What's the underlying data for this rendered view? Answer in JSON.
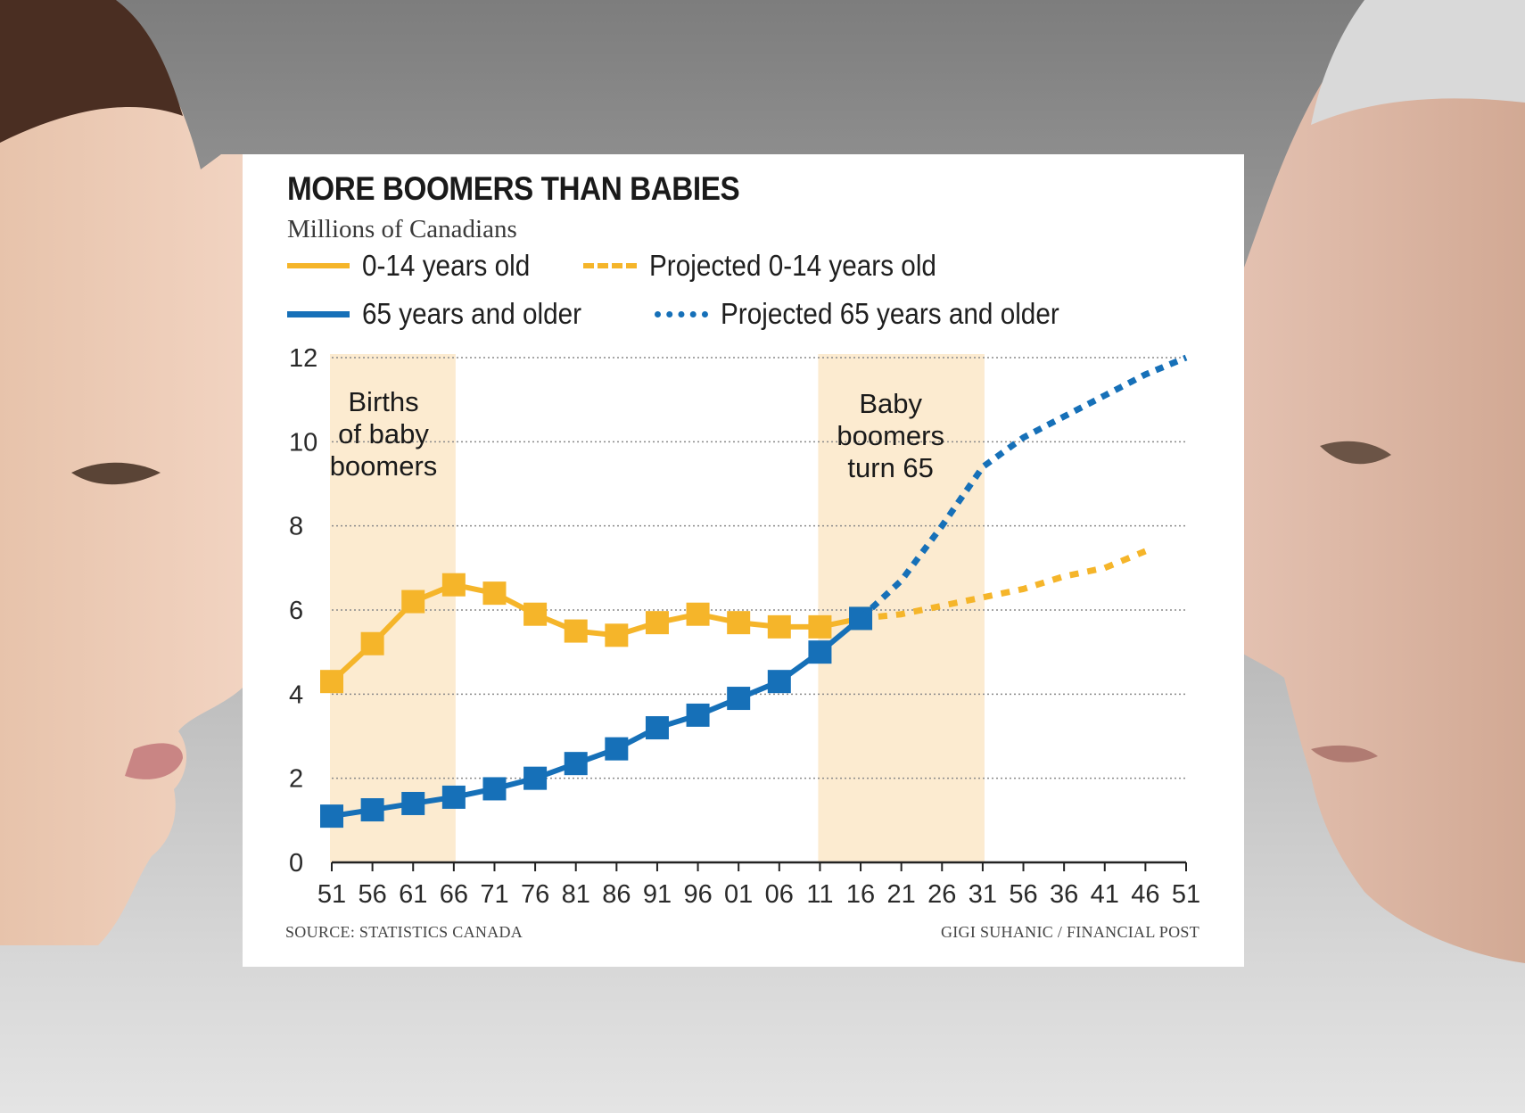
{
  "chart_data": {
    "type": "line",
    "title": "MORE BOOMERS THAN BABIES",
    "subtitle": "Millions of Canadians",
    "x": [
      "51",
      "56",
      "61",
      "66",
      "71",
      "76",
      "81",
      "86",
      "91",
      "96",
      "01",
      "06",
      "11",
      "16",
      "21",
      "26",
      "31",
      "56",
      "36",
      "41",
      "46",
      "51"
    ],
    "ylim": [
      0,
      12
    ],
    "yticks": [
      0,
      2,
      4,
      6,
      8,
      10,
      12
    ],
    "grid": "horizontal dotted",
    "series": [
      {
        "name": "0-14 years old",
        "style": "solid",
        "color": "#f5b52a",
        "markers": true,
        "points": [
          {
            "x": "51",
            "y": 4.3
          },
          {
            "x": "56",
            "y": 5.2
          },
          {
            "x": "61",
            "y": 6.2
          },
          {
            "x": "66",
            "y": 6.6
          },
          {
            "x": "71",
            "y": 6.4
          },
          {
            "x": "76",
            "y": 5.9
          },
          {
            "x": "81",
            "y": 5.5
          },
          {
            "x": "86",
            "y": 5.4
          },
          {
            "x": "91",
            "y": 5.7
          },
          {
            "x": "96",
            "y": 5.9
          },
          {
            "x": "01",
            "y": 5.7
          },
          {
            "x": "06",
            "y": 5.6
          },
          {
            "x": "11",
            "y": 5.6
          },
          {
            "x": "16",
            "y": 5.8
          }
        ]
      },
      {
        "name": "Projected 0-14 years old",
        "style": "dashed",
        "color": "#f5b52a",
        "markers": false,
        "points": [
          {
            "x": "16",
            "y": 5.8
          },
          {
            "x": "21",
            "y": 5.9
          },
          {
            "x": "26",
            "y": 6.1
          },
          {
            "x": "31",
            "y": 6.3
          },
          {
            "x": "56",
            "y": 6.5
          },
          {
            "x": "36",
            "y": 6.8
          },
          {
            "x": "41",
            "y": 7.0
          },
          {
            "x": "46",
            "y": 7.4
          }
        ]
      },
      {
        "name": "65 years and older",
        "style": "solid",
        "color": "#1670b8",
        "markers": true,
        "points": [
          {
            "x": "51",
            "y": 1.1
          },
          {
            "x": "56",
            "y": 1.25
          },
          {
            "x": "61",
            "y": 1.4
          },
          {
            "x": "66",
            "y": 1.55
          },
          {
            "x": "71",
            "y": 1.75
          },
          {
            "x": "76",
            "y": 2.0
          },
          {
            "x": "81",
            "y": 2.35
          },
          {
            "x": "86",
            "y": 2.7
          },
          {
            "x": "91",
            "y": 3.2
          },
          {
            "x": "96",
            "y": 3.5
          },
          {
            "x": "01",
            "y": 3.9
          },
          {
            "x": "06",
            "y": 4.3
          },
          {
            "x": "11",
            "y": 5.0
          },
          {
            "x": "16",
            "y": 5.8
          }
        ]
      },
      {
        "name": "Projected 65 years and older",
        "style": "dotted",
        "color": "#1670b8",
        "markers": false,
        "points": [
          {
            "x": "16",
            "y": 5.8
          },
          {
            "x": "21",
            "y": 6.7
          },
          {
            "x": "26",
            "y": 8.0
          },
          {
            "x": "31",
            "y": 9.4
          },
          {
            "x": "56",
            "y": 10.1
          },
          {
            "x": "36",
            "y": 10.6
          },
          {
            "x": "41",
            "y": 11.1
          },
          {
            "x": "46",
            "y": 11.6
          },
          {
            "x": "51",
            "y": 12.0
          }
        ]
      }
    ],
    "shaded_periods": [
      {
        "label": "Births of baby boomers",
        "from": "51",
        "to": "66"
      },
      {
        "label": "Baby boomers turn 65",
        "from": "11",
        "to": "31"
      }
    ],
    "annotations": [
      {
        "lines": [
          "Births",
          "of baby",
          "boomers"
        ]
      },
      {
        "lines": [
          "Baby",
          "boomers",
          "turn 65"
        ]
      }
    ],
    "legend": {
      "position": "top"
    },
    "source": "SOURCE: STATISTICS CANADA",
    "credit": "GIGI SUHANIC / FINANCIAL POST"
  },
  "colors": {
    "yellow": "#f5b52a",
    "blue": "#1670b8",
    "shade": "#fcebd0"
  }
}
